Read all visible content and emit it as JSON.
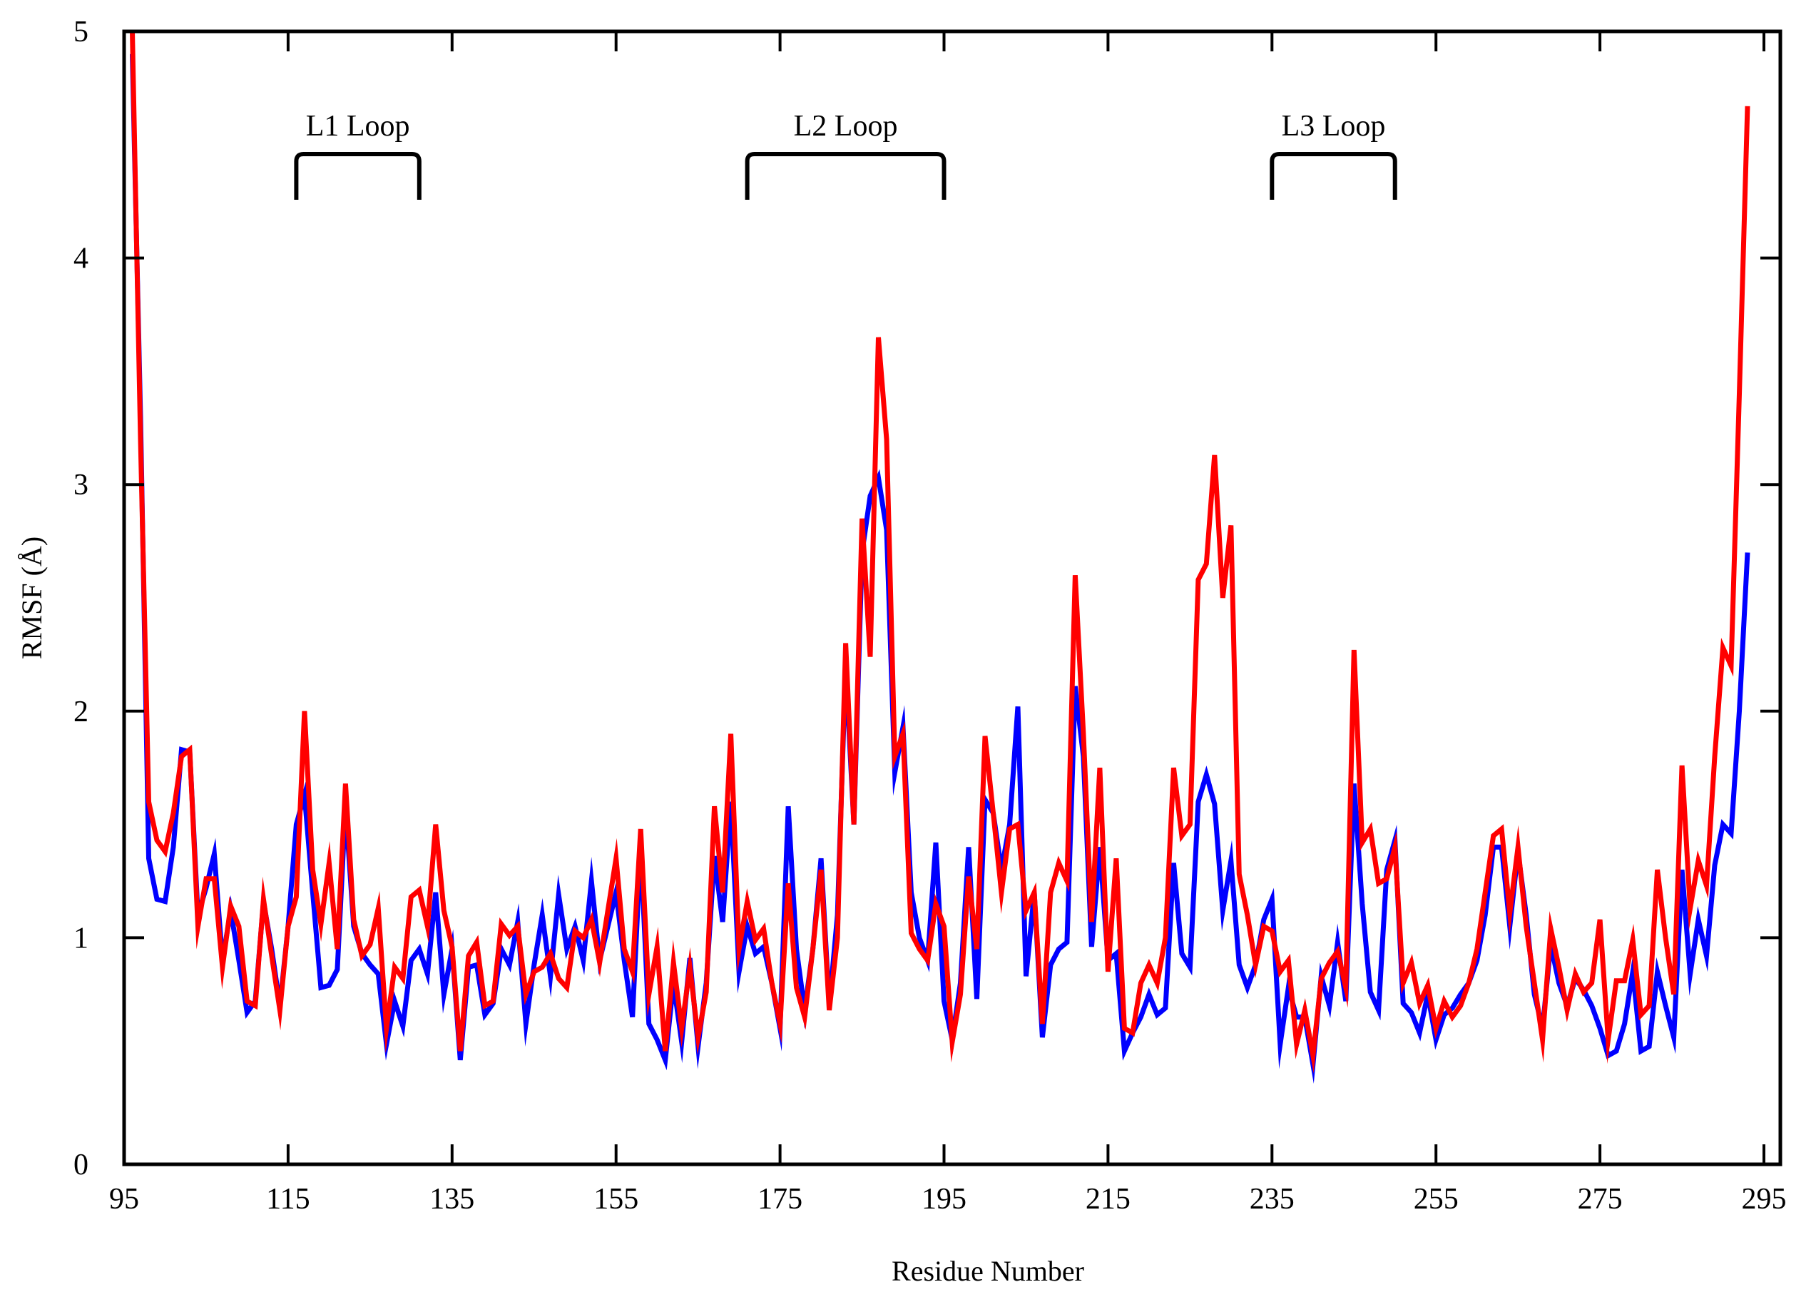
{
  "chart_data": {
    "type": "line",
    "title": "",
    "xlabel": "Residue Number",
    "ylabel": "RMSF (Å)",
    "xlim": [
      95,
      297
    ],
    "ylim": [
      0,
      5
    ],
    "xticks": [
      95,
      115,
      135,
      155,
      175,
      195,
      215,
      235,
      255,
      275,
      295
    ],
    "yticks": [
      0,
      1,
      2,
      3,
      4,
      5
    ],
    "grid": false,
    "legend": "none",
    "colors": {
      "series_1": "#0000ff",
      "series_2": "#ff0000",
      "axis": "#000000"
    },
    "annotations": [
      {
        "text": "L1 Loop",
        "x_start": 116,
        "x_end": 131
      },
      {
        "text": "L2 Loop",
        "x_start": 171,
        "x_end": 195
      },
      {
        "text": "L3 Loop",
        "x_start": 235,
        "x_end": 250
      }
    ],
    "x_start": 96,
    "series": [
      {
        "values": [
          4.9,
          3.3,
          1.35,
          1.17,
          1.16,
          1.4,
          1.83,
          1.82,
          1.1,
          1.22,
          1.37,
          0.9,
          1.12,
          0.9,
          0.67,
          0.72,
          1.16,
          0.95,
          0.7,
          1.05,
          1.5,
          1.63,
          1.2,
          0.78,
          0.79,
          0.86,
          1.58,
          1.05,
          0.93,
          0.88,
          0.84,
          0.53,
          0.72,
          0.61,
          0.9,
          0.95,
          0.84,
          1.2,
          0.75,
          0.95,
          0.46,
          0.87,
          0.88,
          0.66,
          0.71,
          0.95,
          0.88,
          1.07,
          0.62,
          0.88,
          1.1,
          0.83,
          1.19,
          0.95,
          1.05,
          0.9,
          1.25,
          0.9,
          1.05,
          1.2,
          0.9,
          0.65,
          1.4,
          0.62,
          0.55,
          0.46,
          0.8,
          0.54,
          0.91,
          0.52,
          0.8,
          1.36,
          1.07,
          1.6,
          0.85,
          1.05,
          0.93,
          0.96,
          0.8,
          0.6,
          1.58,
          0.95,
          0.68,
          0.95,
          1.35,
          0.7,
          1.1,
          2.2,
          1.5,
          2.7,
          2.95,
          3.03,
          2.8,
          1.73,
          1.93,
          1.2,
          1.0,
          0.9,
          1.42,
          0.72,
          0.55,
          0.8,
          1.4,
          0.73,
          1.61,
          1.55,
          1.3,
          1.5,
          2.02,
          0.83,
          1.2,
          0.56,
          0.88,
          0.95,
          0.98,
          2.11,
          1.8,
          0.96,
          1.4,
          0.9,
          0.93,
          0.5,
          0.58,
          0.65,
          0.75,
          0.66,
          0.69,
          1.33,
          0.93,
          0.87,
          1.6,
          1.72,
          1.59,
          1.12,
          1.34,
          0.88,
          0.78,
          0.88,
          1.08,
          1.17,
          0.53,
          0.78,
          0.65,
          0.65,
          0.44,
          0.83,
          0.7,
          0.98,
          0.72,
          1.68,
          1.15,
          0.76,
          0.68,
          1.3,
          1.43,
          0.71,
          0.67,
          0.58,
          0.75,
          0.55,
          0.66,
          0.69,
          0.75,
          0.8,
          0.9,
          1.1,
          1.4,
          1.4,
          1.05,
          1.38,
          1.1,
          0.75,
          0.6,
          0.97,
          0.8,
          0.7,
          0.82,
          0.77,
          0.7,
          0.6,
          0.48,
          0.5,
          0.62,
          0.85,
          0.5,
          0.52,
          0.85,
          0.7,
          0.56,
          1.3,
          0.84,
          1.08,
          0.92,
          1.32,
          1.5,
          1.46,
          2.0,
          2.7
        ]
      },
      {
        "values": [
          5.1,
          3.2,
          1.6,
          1.43,
          1.38,
          1.55,
          1.8,
          1.83,
          1.05,
          1.26,
          1.26,
          0.87,
          1.14,
          1.05,
          0.72,
          0.7,
          1.17,
          0.92,
          0.68,
          1.05,
          1.18,
          2.0,
          1.3,
          1.06,
          1.33,
          0.95,
          1.68,
          1.08,
          0.92,
          0.97,
          1.13,
          0.6,
          0.87,
          0.82,
          1.18,
          1.21,
          1.05,
          1.5,
          1.12,
          0.96,
          0.5,
          0.92,
          0.98,
          0.7,
          0.72,
          1.06,
          1.01,
          1.05,
          0.75,
          0.85,
          0.87,
          0.93,
          0.82,
          0.78,
          1.03,
          1.0,
          1.08,
          0.89,
          1.12,
          1.35,
          0.95,
          0.85,
          1.48,
          0.75,
          0.96,
          0.5,
          0.89,
          0.6,
          0.87,
          0.56,
          0.76,
          1.58,
          1.2,
          1.9,
          0.95,
          1.16,
          0.99,
          1.04,
          0.8,
          0.62,
          1.24,
          0.78,
          0.65,
          0.95,
          1.3,
          0.68,
          1.0,
          2.3,
          1.5,
          2.85,
          2.24,
          3.65,
          3.2,
          1.8,
          1.9,
          1.02,
          0.95,
          0.9,
          1.15,
          1.05,
          0.54,
          0.75,
          1.27,
          0.95,
          1.89,
          1.55,
          1.2,
          1.48,
          1.5,
          1.12,
          1.2,
          0.62,
          1.2,
          1.33,
          1.25,
          2.6,
          1.9,
          1.07,
          1.75,
          0.85,
          1.35,
          0.6,
          0.58,
          0.8,
          0.88,
          0.8,
          1.0,
          1.75,
          1.45,
          1.5,
          2.58,
          2.65,
          3.13,
          2.5,
          2.82,
          1.28,
          1.1,
          0.88,
          1.05,
          1.03,
          0.85,
          0.9,
          0.53,
          0.68,
          0.48,
          0.82,
          0.89,
          0.94,
          0.78,
          2.27,
          1.42,
          1.48,
          1.24,
          1.26,
          1.4,
          0.8,
          0.89,
          0.71,
          0.79,
          0.6,
          0.72,
          0.65,
          0.7,
          0.8,
          0.95,
          1.2,
          1.45,
          1.48,
          1.11,
          1.4,
          1.05,
          0.8,
          0.55,
          1.04,
          0.87,
          0.68,
          0.84,
          0.76,
          0.8,
          1.08,
          0.55,
          0.81,
          0.81,
          0.99,
          0.66,
          0.7,
          1.3,
          1.0,
          0.75,
          1.76,
          1.13,
          1.34,
          1.23,
          1.8,
          2.28,
          2.2,
          3.4,
          4.67
        ]
      }
    ]
  }
}
